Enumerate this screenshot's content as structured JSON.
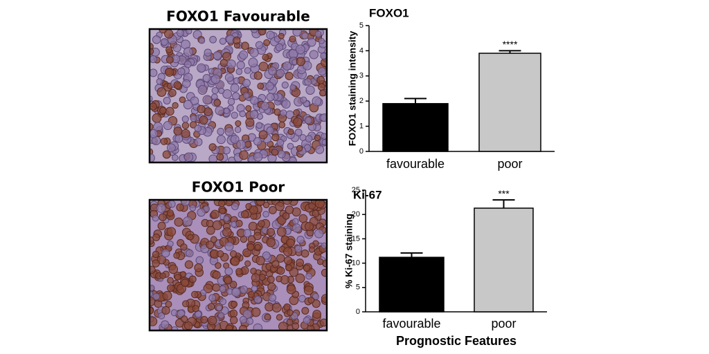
{
  "images": [
    {
      "caption": "FOXO1 Favourable"
    },
    {
      "caption": "FOXO1 Poor"
    }
  ],
  "chart_data": [
    {
      "type": "bar",
      "title": "FOXO1",
      "ylabel": "FOXO1 staining intensity",
      "categories": [
        "favourable",
        "poor"
      ],
      "values": [
        1.9,
        3.9
      ],
      "errors": [
        0.2,
        0.1
      ],
      "colors": [
        "#000000",
        "#c8c8c8"
      ],
      "ylim": [
        0,
        5
      ],
      "yticks": [
        0,
        1,
        2,
        3,
        4,
        5
      ],
      "annotations": [
        {
          "category": "poor",
          "text": "****"
        }
      ]
    },
    {
      "type": "bar",
      "title": "Ki-67",
      "ylabel": "% Ki-67 staining",
      "xlabel": "Prognostic Features",
      "categories": [
        "favourable",
        "poor"
      ],
      "values": [
        11.2,
        21.3
      ],
      "errors": [
        0.9,
        1.7
      ],
      "colors": [
        "#000000",
        "#c8c8c8"
      ],
      "ylim": [
        0,
        25
      ],
      "yticks": [
        0,
        5,
        10,
        15,
        20,
        25
      ],
      "annotations": [
        {
          "category": "poor",
          "text": "***"
        }
      ]
    }
  ]
}
